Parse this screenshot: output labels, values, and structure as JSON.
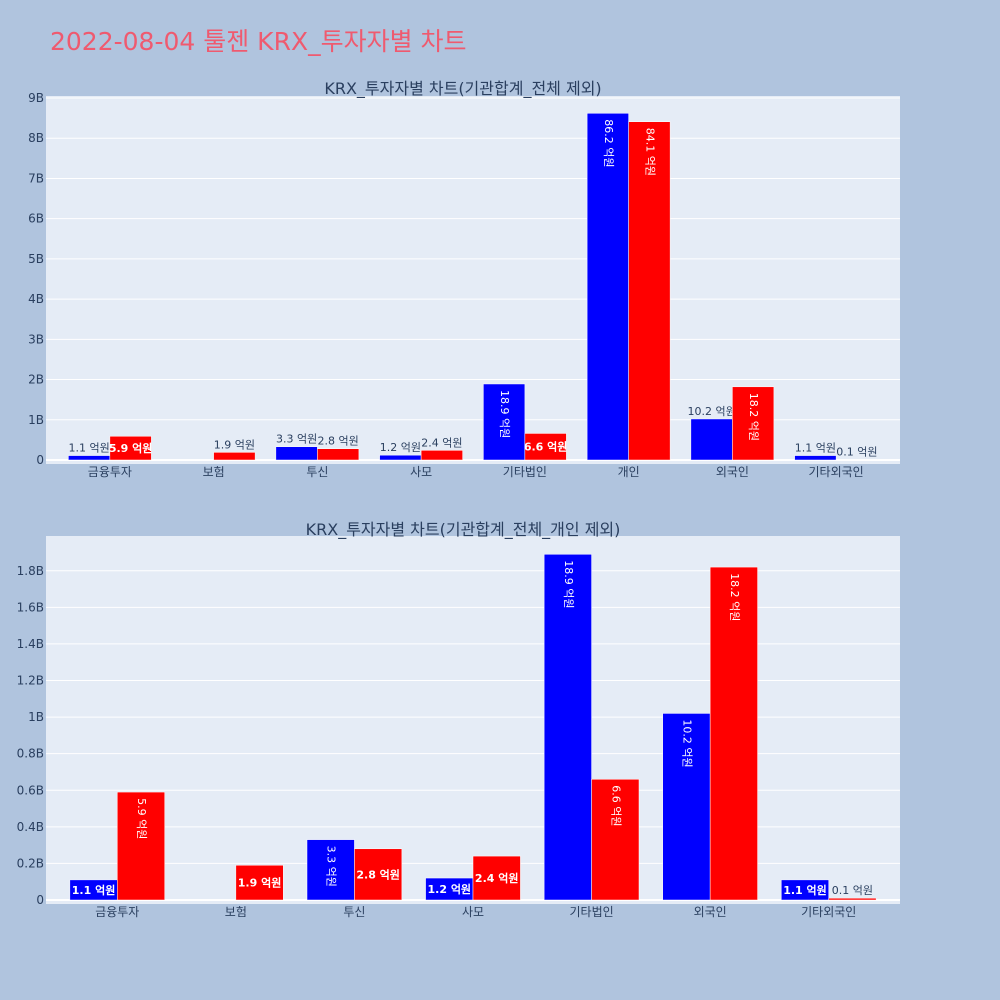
{
  "page": {
    "title": "2022-08-04 툴젠 KRX_투자자별 차트"
  },
  "colors": {
    "background": "#b0c4de",
    "plot_bg": "#e5ecf6",
    "buy": "#0000ff",
    "sell": "#ff0000",
    "title": "#ef5a6f",
    "text": "#2a3f5f"
  },
  "chart_data": [
    {
      "type": "bar",
      "title": "KRX_투자자별 차트(기관합계_전체 제외)",
      "categories": [
        "금융투자",
        "보험",
        "투신",
        "사모",
        "기타법인",
        "개인",
        "외국인",
        "기타외국인"
      ],
      "series": [
        {
          "color": "#0000ff",
          "values": [
            0.11,
            0,
            0.33,
            0.12,
            1.89,
            8.62,
            1.02,
            0.11
          ],
          "labels": [
            "1.1 억원",
            "",
            "3.3 억원",
            "1.2 억원",
            "18.9 억원",
            "86.2 억원",
            "10.2 억원",
            "1.1 억원"
          ]
        },
        {
          "color": "#ff0000",
          "values": [
            0.59,
            0.19,
            0.28,
            0.24,
            0.66,
            8.41,
            1.82,
            0.01
          ],
          "labels": [
            "5.9 억원",
            "1.9 억원",
            "2.8 억원",
            "2.4 억원",
            "6.6 억원",
            "84.1 억원",
            "18.2 억원",
            "0.1 억원"
          ]
        }
      ],
      "ylim": [
        0,
        9.05
      ],
      "yticks": [
        0,
        1,
        2,
        3,
        4,
        5,
        6,
        7,
        8,
        9
      ],
      "ytick_labels": [
        "0",
        "1B",
        "2B",
        "3B",
        "4B",
        "5B",
        "6B",
        "7B",
        "8B",
        "9B"
      ],
      "xlabel": "",
      "ylabel": ""
    },
    {
      "type": "bar",
      "title": "KRX_투자자별 차트(기관합계_전체_개인 제외)",
      "categories": [
        "금융투자",
        "보험",
        "투신",
        "사모",
        "기타법인",
        "외국인",
        "기타외국인"
      ],
      "series": [
        {
          "color": "#0000ff",
          "values": [
            0.11,
            0,
            0.33,
            0.12,
            1.89,
            1.02,
            0.11
          ],
          "labels": [
            "1.1 억원",
            "",
            "3.3 억원",
            "1.2 억원",
            "18.9 억원",
            "10.2 억원",
            "1.1 억원"
          ]
        },
        {
          "color": "#ff0000",
          "values": [
            0.59,
            0.19,
            0.28,
            0.24,
            0.66,
            1.82,
            0.01
          ],
          "labels": [
            "5.9 억원",
            "1.9 억원",
            "2.8 억원",
            "2.4 억원",
            "6.6 억원",
            "18.2 억원",
            "0.1 억원"
          ]
        }
      ],
      "ylim": [
        0,
        1.99
      ],
      "yticks": [
        0,
        0.2,
        0.4,
        0.6,
        0.8,
        1,
        1.2,
        1.4,
        1.6,
        1.8
      ],
      "ytick_labels": [
        "0",
        "0.2B",
        "0.4B",
        "0.6B",
        "0.8B",
        "1B",
        "1.2B",
        "1.4B",
        "1.6B",
        "1.8B"
      ],
      "xlabel": "",
      "ylabel": ""
    }
  ]
}
